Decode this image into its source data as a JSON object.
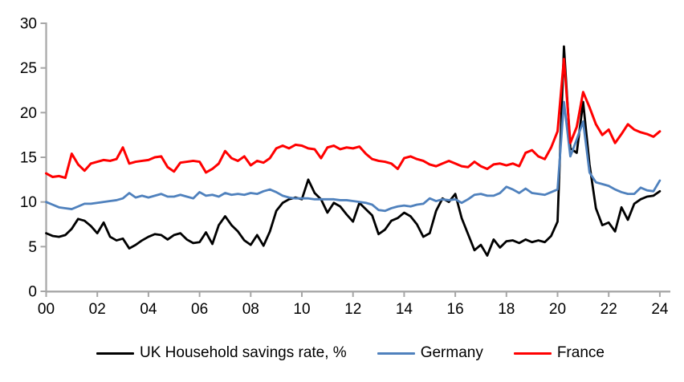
{
  "chart_data": {
    "type": "line",
    "title": "",
    "xlabel": "",
    "ylabel": "",
    "grid": false,
    "legend_position": "bottom",
    "axis_color": "#A6A6A6",
    "text_color": "#000000",
    "x_axis": {
      "start_year": 2000,
      "step_years": 0.25,
      "tick_labels": [
        "00",
        "02",
        "04",
        "06",
        "08",
        "10",
        "12",
        "14",
        "16",
        "18",
        "20",
        "22",
        "24"
      ],
      "tick_step_years": 2
    },
    "y_axis": {
      "tick_labels": [
        "0",
        "5",
        "10",
        "15",
        "20",
        "25",
        "30"
      ],
      "min": 0,
      "max": 30
    },
    "series": [
      {
        "name": "UK Household savings rate, %",
        "color": "#000000",
        "stroke_width": 2.8,
        "values": [
          6.5,
          6.2,
          6.1,
          6.3,
          7.0,
          8.1,
          7.9,
          7.3,
          6.5,
          7.7,
          6.1,
          5.7,
          5.9,
          4.8,
          5.2,
          5.7,
          6.1,
          6.4,
          6.3,
          5.8,
          6.3,
          6.5,
          5.8,
          5.4,
          5.5,
          6.6,
          5.3,
          7.4,
          8.4,
          7.4,
          6.7,
          5.7,
          5.2,
          6.3,
          5.1,
          6.7,
          9.0,
          9.9,
          10.3,
          10.5,
          10.3,
          12.5,
          11.0,
          10.3,
          8.8,
          9.9,
          9.5,
          8.6,
          7.8,
          9.9,
          9.2,
          8.5,
          6.4,
          6.9,
          7.9,
          8.2,
          8.8,
          8.4,
          7.5,
          6.1,
          6.5,
          9.0,
          10.4,
          10.0,
          10.9,
          8.2,
          6.4,
          4.6,
          5.2,
          4.0,
          5.8,
          4.9,
          5.6,
          5.7,
          5.4,
          5.8,
          5.5,
          5.7,
          5.5,
          6.2,
          7.8,
          27.4,
          16.0,
          15.5,
          21.2,
          14.2,
          9.3,
          7.4,
          7.7,
          6.7,
          9.4,
          8.0,
          9.8,
          10.3,
          10.6,
          10.7,
          11.2
        ]
      },
      {
        "name": "Germany",
        "color": "#4F81BD",
        "stroke_width": 2.8,
        "values": [
          10.0,
          9.7,
          9.4,
          9.3,
          9.2,
          9.5,
          9.8,
          9.8,
          9.9,
          10.0,
          10.1,
          10.2,
          10.4,
          11.0,
          10.5,
          10.7,
          10.5,
          10.7,
          10.9,
          10.6,
          10.6,
          10.8,
          10.6,
          10.4,
          11.1,
          10.7,
          10.8,
          10.6,
          11.0,
          10.8,
          10.9,
          10.8,
          11.0,
          10.9,
          11.2,
          11.4,
          11.1,
          10.7,
          10.5,
          10.4,
          10.4,
          10.4,
          10.3,
          10.3,
          10.3,
          10.3,
          10.2,
          10.2,
          10.1,
          10.0,
          9.9,
          9.7,
          9.1,
          9.0,
          9.3,
          9.5,
          9.6,
          9.5,
          9.7,
          9.8,
          10.4,
          10.1,
          10.3,
          10.2,
          10.3,
          9.9,
          10.3,
          10.8,
          10.9,
          10.7,
          10.7,
          11.0,
          11.7,
          11.4,
          11.0,
          11.5,
          11.0,
          10.9,
          10.8,
          11.1,
          11.4,
          21.2,
          15.1,
          17.0,
          19.0,
          13.3,
          12.2,
          12.0,
          11.8,
          11.4,
          11.1,
          10.9,
          10.9,
          11.6,
          11.3,
          11.2,
          12.4
        ]
      },
      {
        "name": "France",
        "color": "#FF0000",
        "stroke_width": 3.0,
        "values": [
          13.2,
          12.8,
          12.9,
          12.7,
          15.4,
          14.2,
          13.5,
          14.3,
          14.5,
          14.7,
          14.6,
          14.8,
          16.1,
          14.3,
          14.5,
          14.6,
          14.7,
          15.0,
          15.1,
          13.9,
          13.4,
          14.4,
          14.5,
          14.6,
          14.5,
          13.3,
          13.7,
          14.3,
          15.7,
          14.9,
          14.6,
          15.1,
          14.1,
          14.6,
          14.4,
          14.9,
          16.0,
          16.3,
          16.0,
          16.4,
          16.3,
          16.0,
          15.9,
          14.9,
          16.1,
          16.3,
          15.9,
          16.1,
          16.0,
          16.2,
          15.4,
          14.8,
          14.6,
          14.5,
          14.3,
          13.7,
          14.9,
          15.1,
          14.8,
          14.6,
          14.2,
          14.0,
          14.3,
          14.6,
          14.3,
          14.0,
          13.9,
          14.5,
          14.0,
          13.7,
          14.2,
          14.3,
          14.1,
          14.3,
          14.0,
          15.5,
          15.8,
          15.1,
          14.8,
          16.1,
          17.9,
          26.0,
          16.6,
          18.4,
          22.3,
          20.6,
          18.7,
          17.5,
          18.1,
          16.6,
          17.6,
          18.7,
          18.1,
          17.8,
          17.6,
          17.3,
          17.9
        ]
      }
    ]
  },
  "legend": {
    "items": [
      {
        "label": "UK Household savings rate, %"
      },
      {
        "label": "Germany"
      },
      {
        "label": "France"
      }
    ]
  }
}
